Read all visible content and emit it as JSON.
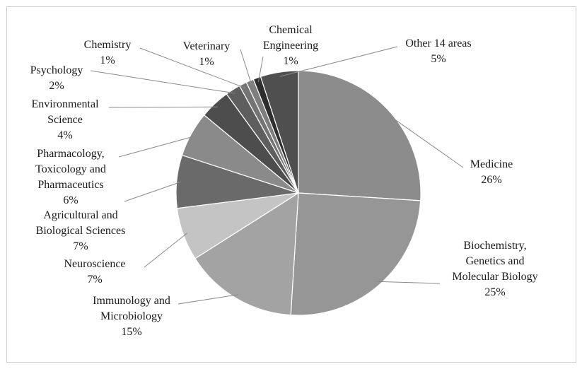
{
  "chart_data": {
    "type": "pie",
    "title": "",
    "slices": [
      {
        "name": "Medicine",
        "value": 26,
        "label": "26%",
        "color": "#8c8c8c"
      },
      {
        "name": "Biochemistry, Genetics and Molecular Biology",
        "value": 25,
        "label": "25%",
        "color": "#969696"
      },
      {
        "name": "Immunology and Microbiology",
        "value": 15,
        "label": "15%",
        "color": "#a3a3a3"
      },
      {
        "name": "Neuroscience",
        "value": 7,
        "label": "7%",
        "color": "#c4c4c4"
      },
      {
        "name": "Agricultural and Biological Sciences",
        "value": 7,
        "label": "7%",
        "color": "#6a6a6a"
      },
      {
        "name": "Pharmacology, Toxicology and Pharmaceutics",
        "value": 6,
        "label": "6%",
        "color": "#8a8a8a"
      },
      {
        "name": "Environmental Science",
        "value": 4,
        "label": "4%",
        "color": "#4d4d4d"
      },
      {
        "name": "Psychology",
        "value": 2,
        "label": "2%",
        "color": "#5e5e5e"
      },
      {
        "name": "Chemistry",
        "value": 1,
        "label": "1%",
        "color": "#747474"
      },
      {
        "name": "Veterinary",
        "value": 1,
        "label": "1%",
        "color": "#7e7e7e"
      },
      {
        "name": "Chemical Engineering",
        "value": 1,
        "label": "1%",
        "color": "#2e2e2e"
      },
      {
        "name": "Other 14 areas",
        "value": 5,
        "label": "5%",
        "color": "#4f4f4f"
      }
    ],
    "label_lines": [
      [
        "Medicine",
        "26%"
      ],
      [
        "Biochemistry,",
        "Genetics and",
        "Molecular Biology",
        "25%"
      ],
      [
        "Immunology and",
        "Microbiology",
        "15%"
      ],
      [
        "Neuroscience",
        "7%"
      ],
      [
        "Agricultural and",
        "Biological Sciences",
        "7%"
      ],
      [
        "Pharmacology,",
        "Toxicology and",
        "Pharmaceutics",
        "6%"
      ],
      [
        "Environmental",
        "Science",
        "4%"
      ],
      [
        "Psychology",
        "2%"
      ],
      [
        "Chemistry",
        "1%"
      ],
      [
        "Veterinary",
        "1%"
      ],
      [
        "Chemical",
        "Engineering",
        "1%"
      ],
      [
        "Other 14 areas",
        "5%"
      ]
    ],
    "start_angle": "12 o'clock",
    "direction": "clockwise",
    "legend": "none"
  }
}
